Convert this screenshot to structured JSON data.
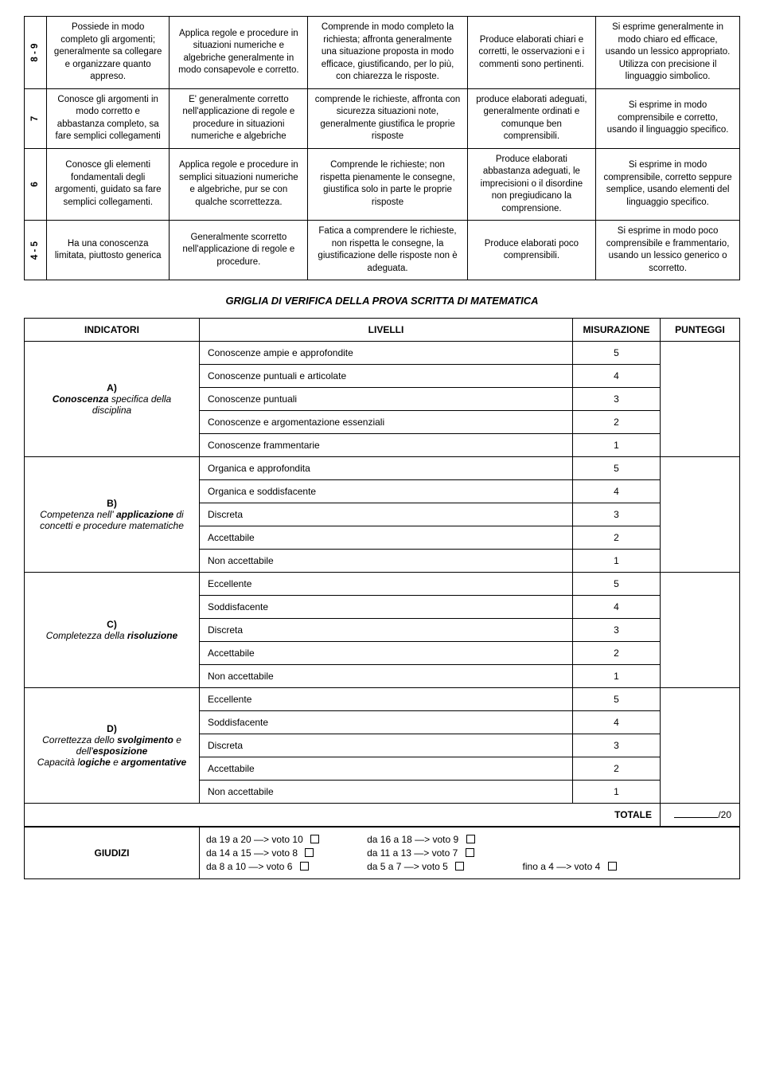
{
  "rubric": {
    "rows": [
      {
        "band": "8 - 9",
        "cells": [
          "Possiede in modo completo gli argomenti; generalmente sa collegare e organizzare quanto appreso.",
          "Applica regole e procedure in situazioni numeriche e algebriche generalmente in modo consapevole e corretto.",
          "Comprende in modo completo la richiesta; affronta generalmente una situazione proposta in modo efficace, giustificando, per lo più, con chiarezza le risposte.",
          "Produce elaborati chiari e corretti, le osservazioni e i commenti sono pertinenti.",
          "Si esprime generalmente in modo chiaro ed efficace, usando un lessico appropriato. Utilizza con precisione il linguaggio simbolico."
        ]
      },
      {
        "band": "7",
        "cells": [
          "Conosce gli argomenti in modo corretto e abbastanza completo, sa fare semplici collegamenti",
          "E' generalmente corretto nell'applicazione di regole e procedure in situazioni numeriche e algebriche",
          "comprende le richieste, affronta con sicurezza situazioni note, generalmente giustifica le proprie risposte",
          "produce elaborati adeguati, generalmente ordinati e comunque ben comprensibili.",
          "Si esprime in modo comprensibile e corretto, usando il linguaggio specifico."
        ]
      },
      {
        "band": "6",
        "cells": [
          "Conosce gli elementi fondamentali degli argomenti, guidato sa fare semplici collegamenti.",
          "Applica regole e procedure in semplici situazioni numeriche e algebriche, pur se con qualche scorrettezza.",
          "Comprende le richieste; non rispetta pienamente le consegne, giustifica solo in parte le proprie risposte",
          "Produce elaborati abbastanza adeguati, le imprecisioni o il disordine non pregiudicano la comprensione.",
          "Si esprime in modo comprensibile, corretto seppure semplice, usando elementi del linguaggio specifico."
        ]
      },
      {
        "band": "4 - 5",
        "cells": [
          "Ha una conoscenza limitata, piuttosto generica",
          "Generalmente scorretto nell'applicazione di regole e procedure.",
          "Fatica a comprendere le richieste, non rispetta le consegne, la giustificazione delle risposte non è adeguata.",
          "Produce elaborati poco comprensibili.",
          "Si esprime in modo poco comprensibile e frammentario, usando un lessico generico o scorretto."
        ]
      }
    ]
  },
  "section_title": "GRIGLIA DI VERIFICA DELLA PROVA SCRITTA DI MATEMATICA",
  "griglia": {
    "headers": {
      "ind": "INDICATORI",
      "liv": "LIVELLI",
      "mis": "MISURAZIONE",
      "pun": "PUNTEGGI"
    },
    "groups": [
      {
        "letter": "A)",
        "label_pre": "Conoscenza",
        "label_em": " specifica della disciplina",
        "levels": [
          {
            "text": "Conoscenze ampie e approfondite",
            "score": "5"
          },
          {
            "text": "Conoscenze puntuali e articolate",
            "score": "4"
          },
          {
            "text": "Conoscenze puntuali",
            "score": "3"
          },
          {
            "text": "Conoscenze e argomentazione essenziali",
            "score": "2"
          },
          {
            "text": "Conoscenze frammentarie",
            "score": "1"
          }
        ]
      },
      {
        "letter": "B)",
        "label_full": "Competenza nell' <b>applicazione</b> di concetti e procedure matematiche",
        "levels": [
          {
            "text": "Organica e approfondita",
            "score": "5"
          },
          {
            "text": "Organica e soddisfacente",
            "score": "4"
          },
          {
            "text": "Discreta",
            "score": "3"
          },
          {
            "text": "Accettabile",
            "score": "2"
          },
          {
            "text": "Non accettabile",
            "score": "1"
          }
        ]
      },
      {
        "letter": "C)",
        "label_full": "Completezza della <b>risoluzione</b>",
        "levels": [
          {
            "text": "Eccellente",
            "score": "5"
          },
          {
            "text": "Soddisfacente",
            "score": "4"
          },
          {
            "text": "Discreta",
            "score": "3"
          },
          {
            "text": "Accettabile",
            "score": "2"
          },
          {
            "text": "Non accettabile",
            "score": "1"
          }
        ]
      },
      {
        "letter": "D)",
        "label_full": "Correttezza dello <b>svolgimento</b> e dell'<b>esposizione</b><br>Capacità l<b>ogiche</b> e <b>argomentative</b>",
        "levels": [
          {
            "text": "Eccellente",
            "score": "5"
          },
          {
            "text": "Soddisfacente",
            "score": "4"
          },
          {
            "text": "Discreta",
            "score": "3"
          },
          {
            "text": "Accettabile",
            "score": "2"
          },
          {
            "text": "Non accettabile",
            "score": "1"
          }
        ]
      }
    ],
    "totale_label": "TOTALE",
    "totale_suffix": "/20"
  },
  "giudizi": {
    "label": "GIUDIZI",
    "col1": [
      "da 19 a 20 —> voto 10",
      "da 14 a 15 —> voto 8",
      "da 8 a 10 —> voto  6"
    ],
    "col2": [
      "da 16 a 18 —> voto 9",
      "da 11 a 13 —> voto 7",
      "da  5 a 7 —> voto 5"
    ],
    "col3": [
      "fino a 4 —> voto 4"
    ]
  }
}
